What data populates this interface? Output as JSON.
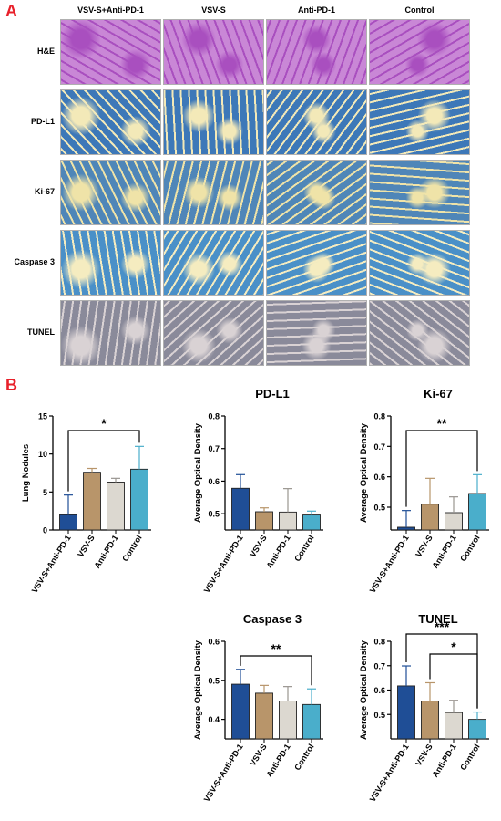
{
  "panel_a_label": "A",
  "panel_b_label": "B",
  "histology": {
    "columns": [
      "VSV-S+Anti-PD-1",
      "VSV-S",
      "Anti-PD-1",
      "Control"
    ],
    "rows": [
      "H&E",
      "PD-L1",
      "Ki-67",
      "Caspase 3",
      "TUNEL"
    ],
    "row_colors": {
      "H&E": [
        "#c987d6",
        "#a94fbf"
      ],
      "PD-L1": [
        "#3d78b8",
        "#f3e9b8"
      ],
      "Ki-67": [
        "#4f86b8",
        "#efe3a8"
      ],
      "Caspase 3": [
        "#4a90c8",
        "#f5ecc0"
      ],
      "TUNEL": [
        "#8a8a9a",
        "#d9d2d4"
      ]
    }
  },
  "colors": {
    "bars": [
      "#1f4e96",
      "#b8956a",
      "#dcd8d0",
      "#4aaecb"
    ],
    "axis": "#000000"
  },
  "chart_data": [
    {
      "type": "bar",
      "title": "",
      "xlabel": "",
      "ylabel": "Lung Nodules",
      "categories": [
        "VSV-S+Anti-PD-1",
        "VSV-S",
        "Anti-PD-1",
        "Control"
      ],
      "values": [
        2.0,
        7.6,
        6.3,
        8.0
      ],
      "errors": [
        2.6,
        0.5,
        0.5,
        3.0
      ],
      "ylim": [
        0,
        15
      ],
      "yticks": [
        "0",
        "5",
        "10",
        "15"
      ],
      "significance": [
        {
          "from": 0,
          "to": 3,
          "label": "*"
        }
      ]
    },
    {
      "type": "bar",
      "title": "PD-L1",
      "xlabel": "",
      "ylabel": "Average Optical Density",
      "categories": [
        "VSV-S+Anti-PD-1",
        "VSV-S",
        "Anti-PD-1",
        "Control"
      ],
      "values": [
        0.578,
        0.506,
        0.505,
        0.496
      ],
      "errors": [
        0.042,
        0.012,
        0.072,
        0.012
      ],
      "ylim": [
        0.45,
        0.8
      ],
      "yticks": [
        "0.5",
        "0.6",
        "0.7",
        "0.8"
      ],
      "significance": []
    },
    {
      "type": "bar",
      "title": "Ki-67",
      "xlabel": "",
      "ylabel": "Average Optical Density",
      "categories": [
        "VSV-S+Anti-PD-1",
        "VSV-S",
        "Anti-PD-1",
        "Control"
      ],
      "values": [
        0.434,
        0.51,
        0.482,
        0.545
      ],
      "errors": [
        0.055,
        0.085,
        0.052,
        0.062
      ],
      "ylim": [
        0.425,
        0.8
      ],
      "yticks": [
        "0.5",
        "0.6",
        "0.7",
        "0.8"
      ],
      "significance": [
        {
          "from": 0,
          "to": 3,
          "label": "**"
        }
      ]
    },
    {
      "type": "bar",
      "title": "Caspase 3",
      "xlabel": "",
      "ylabel": "Average Optical Density",
      "categories": [
        "VSV-S+Anti-PD-1",
        "VSV-S",
        "Anti-PD-1",
        "Control"
      ],
      "values": [
        0.49,
        0.467,
        0.447,
        0.438
      ],
      "errors": [
        0.038,
        0.02,
        0.037,
        0.04
      ],
      "ylim": [
        0.35,
        0.6
      ],
      "yticks": [
        "0.4",
        "0.5",
        "0.6"
      ],
      "significance": [
        {
          "from": 0,
          "to": 3,
          "label": "**"
        }
      ]
    },
    {
      "type": "bar",
      "title": "TUNEL",
      "xlabel": "",
      "ylabel": "Average Optical Density",
      "categories": [
        "VSV-S+Anti-PD-1",
        "VSV-S",
        "Anti-PD-1",
        "Control"
      ],
      "values": [
        0.617,
        0.555,
        0.508,
        0.48
      ],
      "errors": [
        0.082,
        0.075,
        0.05,
        0.03
      ],
      "ylim": [
        0.4,
        0.8
      ],
      "yticks": [
        "0.5",
        "0.6",
        "0.7",
        "0.8"
      ],
      "significance": [
        {
          "from": 0,
          "to": 3,
          "label": "***"
        },
        {
          "from": 1,
          "to": 3,
          "label": "*"
        }
      ]
    }
  ]
}
